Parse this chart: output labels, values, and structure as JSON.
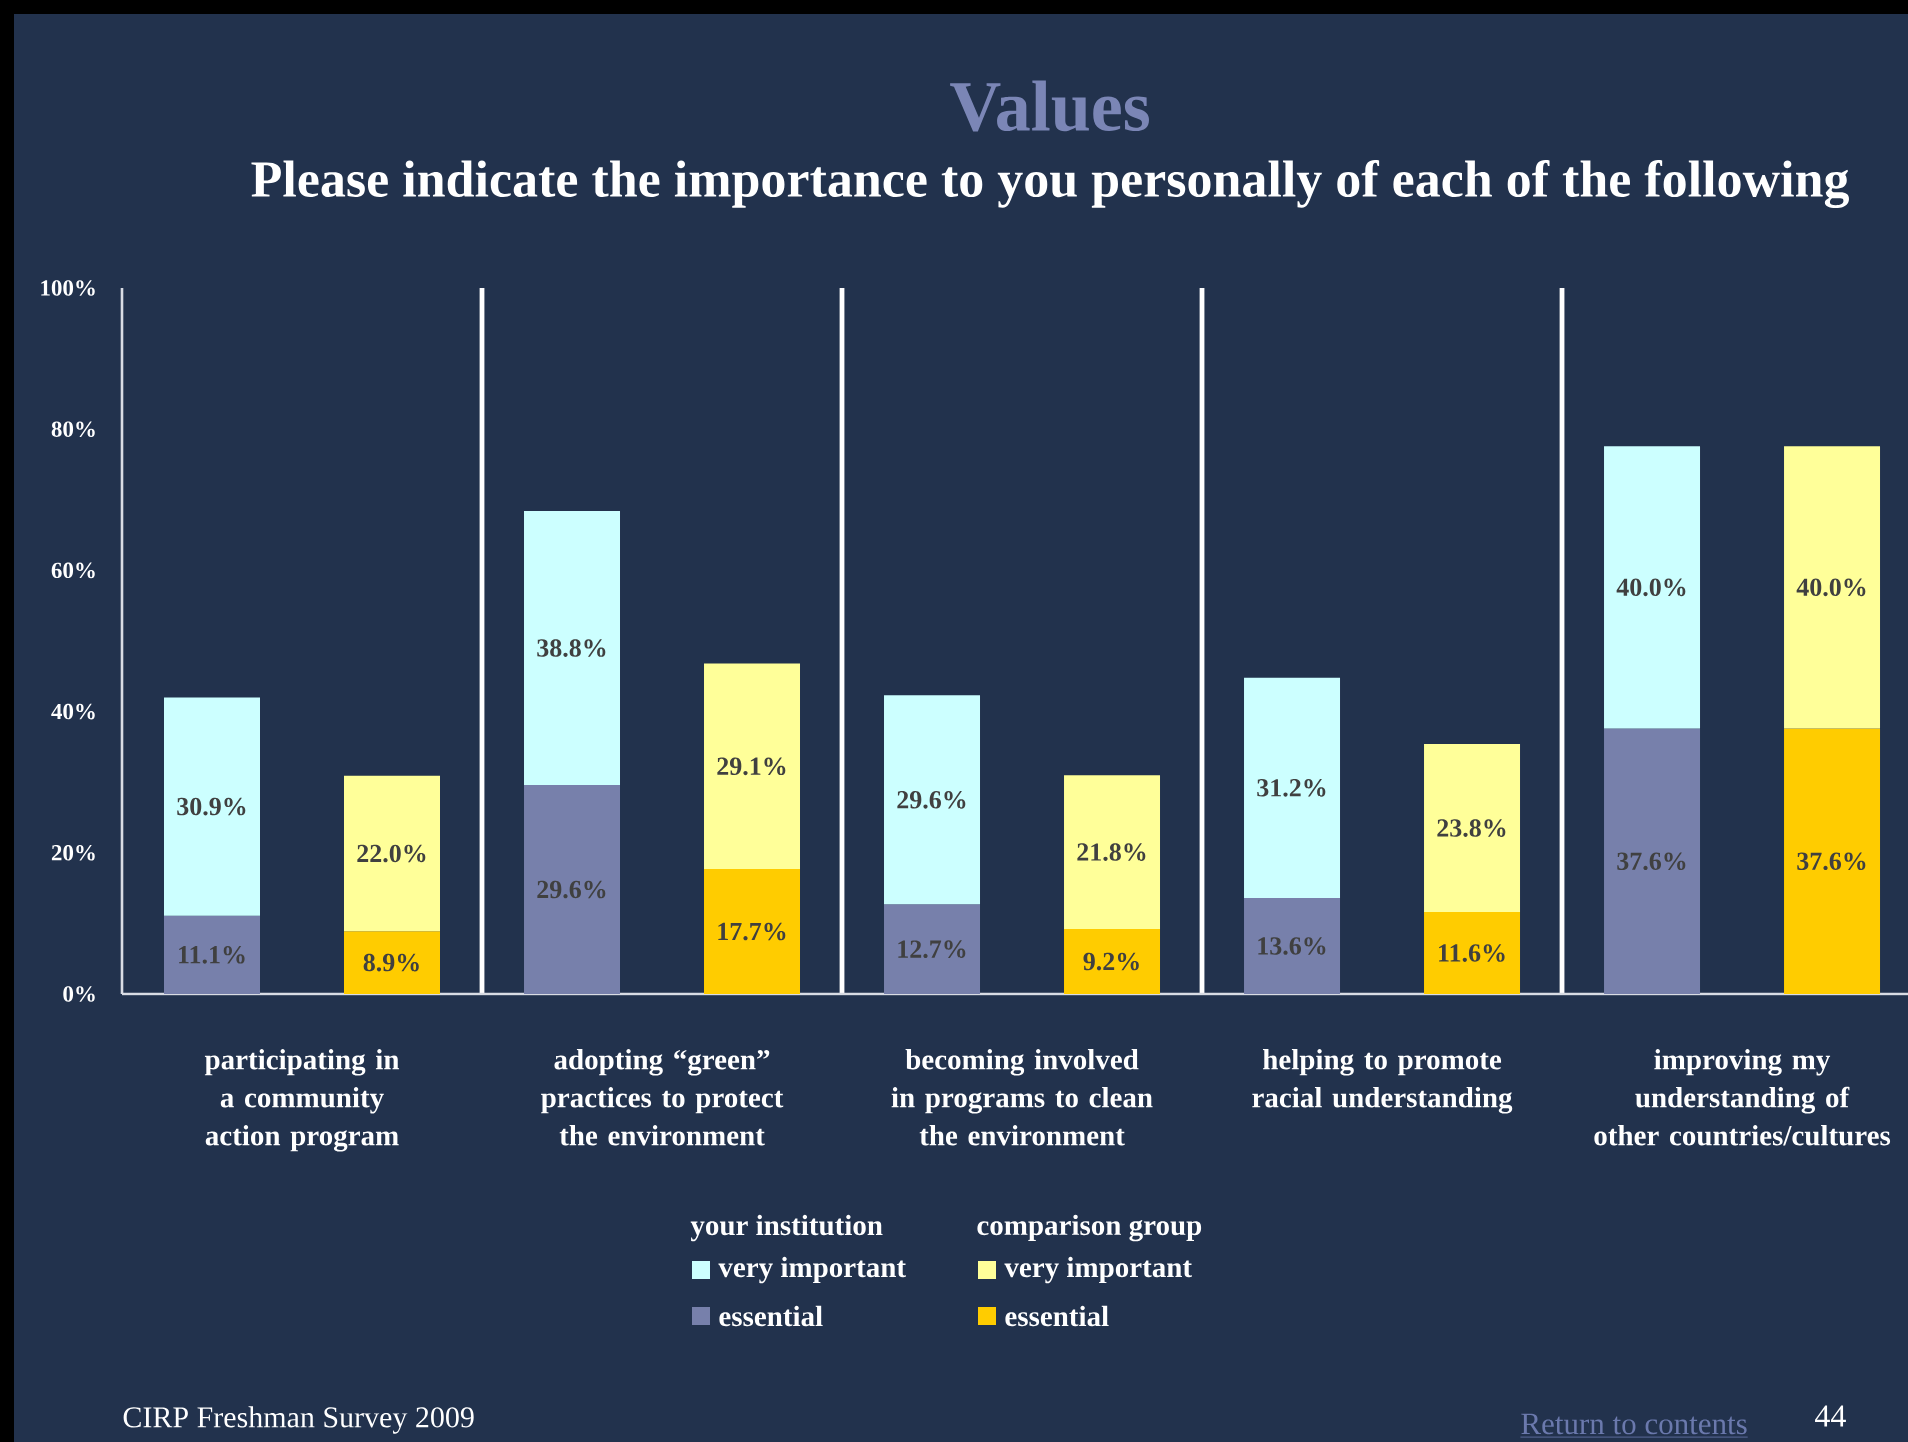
{
  "chart_data": {
    "type": "bar",
    "stacked": true,
    "title": "Values",
    "subtitle": "Please indicate the importance to you personally of each of the following",
    "categories": [
      "participating in a community action program",
      null,
      "adopting “green” practices to protect the environment",
      null,
      "becoming involved in programs to clean the environment",
      null,
      "helping to promote racial understanding",
      null,
      "improving my understanding of other countries/cultures",
      null
    ],
    "series": [
      {
        "name": "essential",
        "color": "#7780ab",
        "values": [
          11.1,
          null,
          29.6,
          null,
          12.7,
          null,
          13.6,
          null,
          37.6,
          null
        ],
        "value_labels": [
          "11.1%",
          null,
          "29.6%",
          null,
          "12.7%",
          null,
          "13.6%",
          null,
          "37.6%",
          null
        ]
      },
      {
        "name": "very important",
        "color": "#ccffff",
        "values": [
          30.9,
          null,
          38.8,
          null,
          29.6,
          null,
          31.2,
          null,
          40.0,
          null
        ],
        "value_labels": [
          "30.9%",
          null,
          "38.8%",
          null,
          "29.6%",
          null,
          "31.2%",
          null,
          "40.0%",
          null
        ]
      },
      {
        "name": "essential",
        "color": "#ffcc00",
        "values": [
          null,
          8.9,
          null,
          17.7,
          null,
          9.2,
          null,
          11.6,
          null,
          37.6
        ],
        "value_labels": [
          null,
          "8.9%",
          null,
          "17.7%",
          null,
          "9.2%",
          null,
          "11.6%",
          null,
          "37.6%"
        ]
      },
      {
        "name": "very important",
        "color": "#ffff99",
        "values": [
          null,
          22.0,
          null,
          29.1,
          null,
          21.8,
          null,
          23.8,
          null,
          40.0
        ],
        "value_labels": [
          null,
          "22.0%",
          null,
          "29.1%",
          null,
          "21.8%",
          null,
          "23.8%",
          null,
          "40.0%"
        ]
      }
    ],
    "ylim": [
      0,
      100
    ],
    "yticks": [
      {
        "value": 0,
        "label": "0%"
      },
      {
        "value": 20,
        "label": "20%"
      },
      {
        "value": 40,
        "label": "40%"
      },
      {
        "value": 60,
        "label": "60%"
      },
      {
        "value": 80,
        "label": "80%"
      },
      {
        "value": 100,
        "label": "100%"
      }
    ],
    "grid": "x",
    "legend": "bottom",
    "annotations": [
      "your institution",
      "comparison group",
      "CIRP Freshman Survey 2009",
      "Return to contents",
      "44"
    ]
  }
}
